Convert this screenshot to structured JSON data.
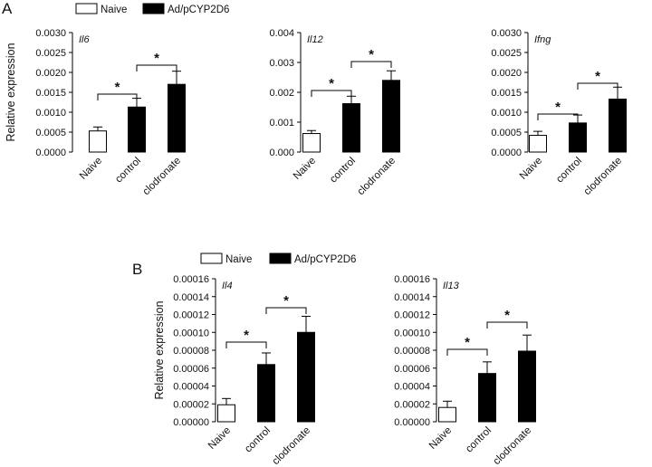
{
  "panels": [
    {
      "letter": "A"
    },
    {
      "letter": "B"
    }
  ],
  "legend": [
    {
      "label": "Naive",
      "color": "#ffffff"
    },
    {
      "label": "Ad/pCYP2D6",
      "color": "#000000"
    }
  ],
  "chart_data": [
    {
      "type": "bar",
      "panel": "A",
      "title": "Il6",
      "ylabel": "Relative expression",
      "xlabel": "",
      "categories": [
        "Naive",
        "control",
        "clodronate"
      ],
      "values": [
        0.00053,
        0.00113,
        0.0017
      ],
      "errors": [
        0.0001,
        0.00022,
        0.00033
      ],
      "colors": [
        "#ffffff",
        "#000000",
        "#000000"
      ],
      "ylim": [
        0,
        0.003
      ],
      "yticks": [
        "0.0000",
        "0.0005",
        "0.0010",
        "0.0015",
        "0.0020",
        "0.0025",
        "0.0030"
      ],
      "significance": [
        {
          "from": 0,
          "to": 1,
          "label": "*"
        },
        {
          "from": 1,
          "to": 2,
          "label": "*"
        }
      ]
    },
    {
      "type": "bar",
      "panel": "A",
      "title": "Il12",
      "ylabel": "",
      "xlabel": "",
      "categories": [
        "Naive",
        "control",
        "clodronate"
      ],
      "values": [
        0.00062,
        0.00162,
        0.0024
      ],
      "errors": [
        0.0001,
        0.00025,
        0.00032
      ],
      "colors": [
        "#ffffff",
        "#000000",
        "#000000"
      ],
      "ylim": [
        0,
        0.004
      ],
      "yticks": [
        "0.000",
        "0.001",
        "0.002",
        "0.003",
        "0.004"
      ],
      "significance": [
        {
          "from": 0,
          "to": 1,
          "label": "*"
        },
        {
          "from": 1,
          "to": 2,
          "label": "*"
        }
      ]
    },
    {
      "type": "bar",
      "panel": "A",
      "title": "Ifng",
      "ylabel": "",
      "xlabel": "",
      "categories": [
        "Naive",
        "control",
        "clodronate"
      ],
      "values": [
        0.00042,
        0.00073,
        0.00133
      ],
      "errors": [
        0.0001,
        0.0002,
        0.0003
      ],
      "colors": [
        "#ffffff",
        "#000000",
        "#000000"
      ],
      "ylim": [
        0,
        0.003
      ],
      "yticks": [
        "0.0000",
        "0.0005",
        "0.0010",
        "0.0015",
        "0.0020",
        "0.0025",
        "0.0030"
      ],
      "significance": [
        {
          "from": 0,
          "to": 1,
          "label": "*"
        },
        {
          "from": 1,
          "to": 2,
          "label": "*"
        }
      ]
    },
    {
      "type": "bar",
      "panel": "B",
      "title": "Il4",
      "ylabel": "Relative expression",
      "xlabel": "",
      "categories": [
        "Naive",
        "control",
        "clodronate"
      ],
      "values": [
        1.9e-05,
        6.4e-05,
        0.0001
      ],
      "errors": [
        7e-06,
        1.3e-05,
        1.8e-05
      ],
      "colors": [
        "#ffffff",
        "#000000",
        "#000000"
      ],
      "ylim": [
        0,
        0.00016
      ],
      "yticks": [
        "0.00000",
        "0.00002",
        "0.00004",
        "0.00006",
        "0.00008",
        "0.00010",
        "0.00012",
        "0.00014",
        "0.00016"
      ],
      "significance": [
        {
          "from": 0,
          "to": 1,
          "label": "*"
        },
        {
          "from": 1,
          "to": 2,
          "label": "*"
        }
      ]
    },
    {
      "type": "bar",
      "panel": "B",
      "title": "Il13",
      "ylabel": "",
      "xlabel": "",
      "categories": [
        "Naive",
        "control",
        "clodronate"
      ],
      "values": [
        1.6e-05,
        5.4e-05,
        7.9e-05
      ],
      "errors": [
        7e-06,
        1.3e-05,
        1.8e-05
      ],
      "colors": [
        "#ffffff",
        "#000000",
        "#000000"
      ],
      "ylim": [
        0,
        0.00016
      ],
      "yticks": [
        "0.00000",
        "0.00002",
        "0.00004",
        "0.00006",
        "0.00008",
        "0.00010",
        "0.00012",
        "0.00014",
        "0.00016"
      ],
      "significance": [
        {
          "from": 0,
          "to": 1,
          "label": "*"
        },
        {
          "from": 1,
          "to": 2,
          "label": "*"
        }
      ]
    }
  ]
}
